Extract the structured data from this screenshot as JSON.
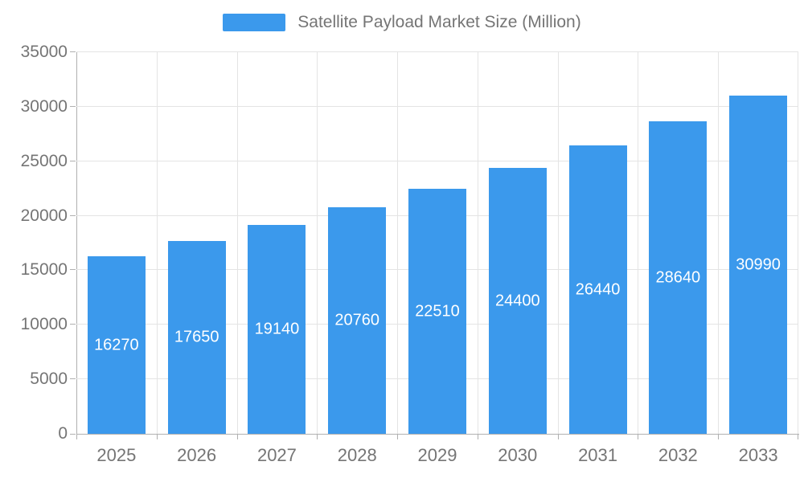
{
  "chart_data": {
    "type": "bar",
    "title": "Satellite Payload Market Size (Million)",
    "categories": [
      "2025",
      "2026",
      "2027",
      "2028",
      "2029",
      "2030",
      "2031",
      "2032",
      "2033"
    ],
    "values": [
      16270,
      17650,
      19140,
      20760,
      22510,
      24400,
      26440,
      28640,
      30990
    ],
    "xlabel": "",
    "ylabel": "",
    "ylim": [
      0,
      35000
    ],
    "yticks": [
      0,
      5000,
      10000,
      15000,
      20000,
      25000,
      30000,
      35000
    ],
    "grid": true,
    "legend_position": "top",
    "value_labels": "centered-in-bar",
    "colors": {
      "bar": "#3b99ec",
      "value_label": "#ffffff",
      "axis_text": "#757575",
      "grid_line": "#e4e4e4",
      "axis_line": "#b0b0b0",
      "background": "#ffffff"
    }
  }
}
